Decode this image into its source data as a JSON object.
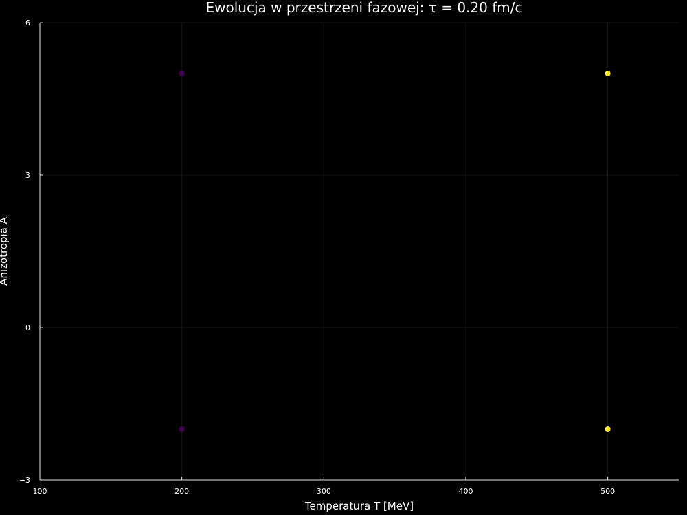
{
  "chart_data": {
    "type": "scatter",
    "title": "Ewolucja w przestrzeni fazowej: τ = 0.20 fm/c",
    "xlabel": "Temperatura T [MeV]",
    "ylabel": "Anizotropia A",
    "xlim": [
      100,
      550
    ],
    "ylim": [
      -3,
      6
    ],
    "xticks": [
      100,
      200,
      300,
      400,
      500
    ],
    "yticks": [
      -3,
      0,
      3,
      6
    ],
    "grid": true,
    "legend": "none",
    "colors": {
      "background": "#000000",
      "low": "#440154",
      "high": "#fde725"
    },
    "points": [
      {
        "x": 200,
        "y": 5,
        "color": "#440154"
      },
      {
        "x": 200,
        "y": -2,
        "color": "#440154"
      },
      {
        "x": 500,
        "y": 5,
        "color": "#fde725"
      },
      {
        "x": 500,
        "y": -2,
        "color": "#fde725"
      }
    ]
  }
}
